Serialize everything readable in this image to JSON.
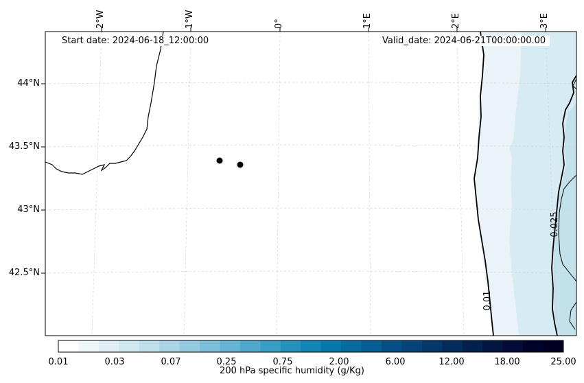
{
  "header": {
    "start_date": "Start date: 2024-06-18_12:00:00",
    "valid_date": "Valid_date: 2024-06-21T00:00:00.00"
  },
  "axes": {
    "lon_labels": [
      "2°W",
      "1°W",
      "0°",
      "1°E",
      "2°E",
      "3°E"
    ],
    "lat_labels": [
      "44°N",
      "43.5°N",
      "43°N",
      "42.5°N"
    ]
  },
  "map": {
    "contour_labels": [
      "0.01",
      "0.025"
    ],
    "colors": {
      "coastline": "#000000",
      "gridline": "#cccccc",
      "band_1": "#eaf4f8",
      "band_2": "#d6ebf2",
      "band_3": "#c2e1ea",
      "marker": "#000000"
    }
  },
  "colorbar": {
    "title": "200 hPa specific humidity (g/Kg)",
    "tick_labels": [
      "0.01",
      "0.03",
      "0.07",
      "0.25",
      "0.75",
      "2.00",
      "6.00",
      "12.00",
      "18.00",
      "25.00"
    ],
    "colors": [
      "#ffffff",
      "#eff7fa",
      "#dfeff5",
      "#cfe7f0",
      "#bfdfeb",
      "#a9d5e6",
      "#93cae0",
      "#7dbfd9",
      "#66b4d3",
      "#4fa9cc",
      "#3a9dc5",
      "#2691bd",
      "#1384b5",
      "#0677ab",
      "#046aa0",
      "#045d94",
      "#045086",
      "#044478",
      "#04386a",
      "#032c5c",
      "#03214e",
      "#031641",
      "#020c36",
      "#01032b",
      "#010022"
    ]
  }
}
